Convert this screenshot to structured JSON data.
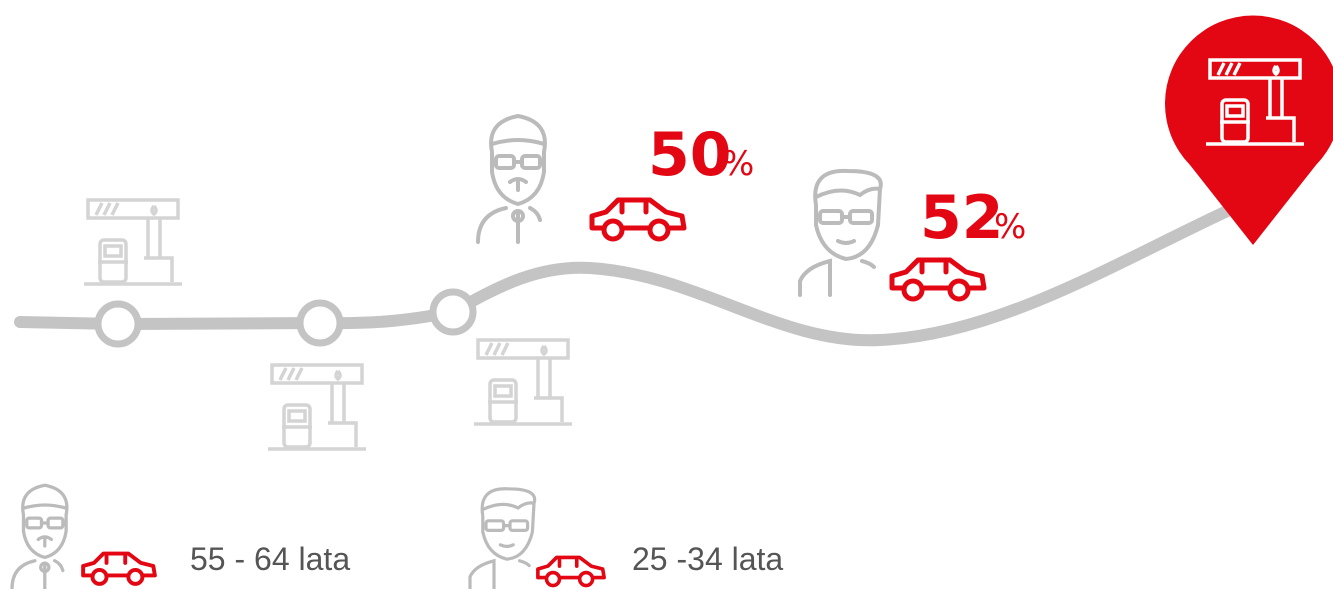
{
  "stats": [
    {
      "value": "50",
      "unit": "%"
    },
    {
      "value": "52",
      "unit": "%"
    }
  ],
  "legend": [
    {
      "label": "55 - 64 lata"
    },
    {
      "label": "25 -34 lata"
    }
  ]
}
